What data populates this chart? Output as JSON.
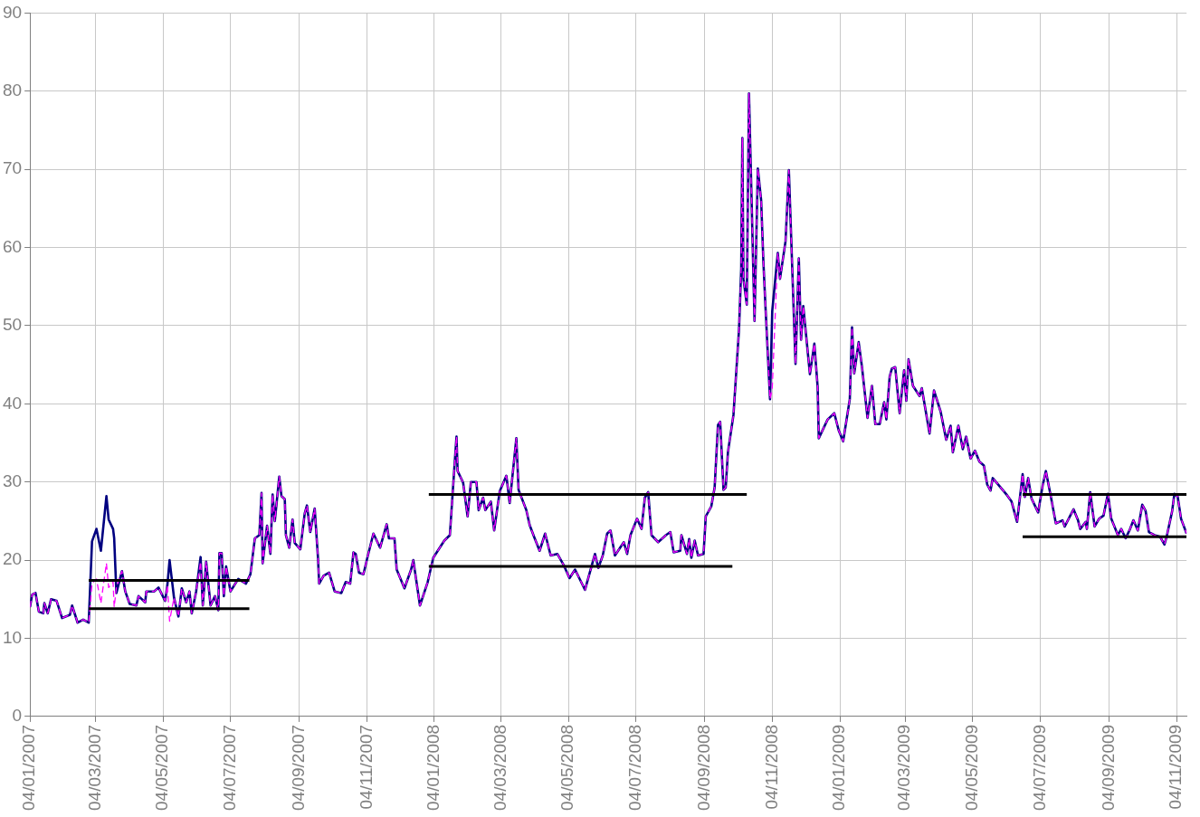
{
  "chart_data": {
    "type": "line",
    "x": [
      "2007-01-04",
      "2007-01-06",
      "2007-01-09",
      "2007-01-12",
      "2007-01-16",
      "2007-01-17",
      "2007-01-20",
      "2007-01-23",
      "2007-01-28",
      "2007-02-02",
      "2007-02-09",
      "2007-02-11",
      "2007-02-16",
      "2007-02-21",
      "2007-02-26",
      "2007-03-01",
      "2007-03-05",
      "2007-03-09",
      "2007-03-14",
      "2007-03-16",
      "2007-03-20",
      "2007-03-21",
      "2007-03-23",
      "2007-03-28",
      "2007-03-31",
      "2007-04-04",
      "2007-04-10",
      "2007-04-12",
      "2007-04-18",
      "2007-04-19",
      "2007-04-26",
      "2007-04-30",
      "2007-05-06",
      "2007-05-08",
      "2007-05-10",
      "2007-05-14",
      "2007-05-18",
      "2007-05-21",
      "2007-05-25",
      "2007-05-28",
      "2007-05-30",
      "2007-06-03",
      "2007-06-07",
      "2007-06-09",
      "2007-06-12",
      "2007-06-16",
      "2007-06-20",
      "2007-06-23",
      "2007-06-24",
      "2007-06-26",
      "2007-06-28",
      "2007-06-30",
      "2007-07-04",
      "2007-07-11",
      "2007-07-18",
      "2007-07-22",
      "2007-07-26",
      "2007-07-30",
      "2007-08-01",
      "2007-08-02",
      "2007-08-06",
      "2007-08-09",
      "2007-08-11",
      "2007-08-13",
      "2007-08-17",
      "2007-08-19",
      "2007-08-22",
      "2007-08-23",
      "2007-08-26",
      "2007-08-29",
      "2007-08-31",
      "2007-09-05",
      "2007-09-09",
      "2007-09-11",
      "2007-09-14",
      "2007-09-18",
      "2007-09-21",
      "2007-09-22",
      "2007-09-26",
      "2007-10-01",
      "2007-10-06",
      "2007-10-12",
      "2007-10-16",
      "2007-10-20",
      "2007-10-23",
      "2007-10-25",
      "2007-10-28",
      "2007-11-01",
      "2007-11-05",
      "2007-11-10",
      "2007-11-16",
      "2007-11-22",
      "2007-11-24",
      "2007-11-29",
      "2007-12-01",
      "2007-12-08",
      "2007-12-14",
      "2007-12-16",
      "2007-12-22",
      "2007-12-29",
      "2008-01-03",
      "2008-01-13",
      "2008-01-18",
      "2008-01-22",
      "2008-01-24",
      "2008-01-25",
      "2008-01-30",
      "2008-02-03",
      "2008-02-06",
      "2008-02-11",
      "2008-02-13",
      "2008-02-17",
      "2008-02-19",
      "2008-02-24",
      "2008-02-27",
      "2008-03-03",
      "2008-03-09",
      "2008-03-12",
      "2008-03-18",
      "2008-03-20",
      "2008-03-27",
      "2008-03-30",
      "2008-04-03",
      "2008-04-08",
      "2008-04-13",
      "2008-04-18",
      "2008-04-24",
      "2008-04-30",
      "2008-05-05",
      "2008-05-10",
      "2008-05-19",
      "2008-05-28",
      "2008-05-31",
      "2008-06-04",
      "2008-06-08",
      "2008-06-11",
      "2008-06-15",
      "2008-06-23",
      "2008-06-26",
      "2008-06-29",
      "2008-07-05",
      "2008-07-09",
      "2008-07-12",
      "2008-07-15",
      "2008-07-18",
      "2008-07-24",
      "2008-07-31",
      "2008-08-04",
      "2008-08-07",
      "2008-08-13",
      "2008-08-14",
      "2008-08-19",
      "2008-08-21",
      "2008-08-23",
      "2008-08-26",
      "2008-08-29",
      "2008-09-03",
      "2008-09-05",
      "2008-09-10",
      "2008-09-13",
      "2008-09-16",
      "2008-09-18",
      "2008-09-21",
      "2008-09-23",
      "2008-09-25",
      "2008-09-30",
      "2008-10-05",
      "2008-10-07",
      "2008-10-08",
      "2008-10-09",
      "2008-10-12",
      "2008-10-14",
      "2008-10-19",
      "2008-10-22",
      "2008-10-25",
      "2008-10-27",
      "2008-10-29",
      "2008-11-02",
      "2008-11-04",
      "2008-11-09",
      "2008-11-11",
      "2008-11-16",
      "2008-11-19",
      "2008-11-25",
      "2008-11-28",
      "2008-11-30",
      "2008-12-02",
      "2008-12-08",
      "2008-12-12",
      "2008-12-15",
      "2008-12-16",
      "2008-12-24",
      "2008-12-30",
      "2009-01-03",
      "2009-01-07",
      "2009-01-13",
      "2009-01-15",
      "2009-01-17",
      "2009-01-21",
      "2009-01-24",
      "2009-01-29",
      "2009-02-02",
      "2009-02-05",
      "2009-02-09",
      "2009-02-13",
      "2009-02-15",
      "2009-02-18",
      "2009-02-20",
      "2009-02-23",
      "2009-02-27",
      "2009-03-03",
      "2009-03-05",
      "2009-03-07",
      "2009-03-11",
      "2009-03-17",
      "2009-03-19",
      "2009-03-26",
      "2009-03-30",
      "2009-04-05",
      "2009-04-10",
      "2009-04-14",
      "2009-04-16",
      "2009-04-21",
      "2009-04-25",
      "2009-04-28",
      "2009-05-02",
      "2009-05-06",
      "2009-05-10",
      "2009-05-14",
      "2009-05-17",
      "2009-05-20",
      "2009-05-22",
      "2009-05-28",
      "2009-06-04",
      "2009-06-08",
      "2009-06-13",
      "2009-06-18",
      "2009-06-20",
      "2009-06-23",
      "2009-06-26",
      "2009-07-02",
      "2009-07-06",
      "2009-07-09",
      "2009-07-13",
      "2009-07-18",
      "2009-07-24",
      "2009-07-26",
      "2009-07-31",
      "2009-08-03",
      "2009-08-07",
      "2009-08-09",
      "2009-08-14",
      "2009-08-15",
      "2009-08-18",
      "2009-08-22",
      "2009-08-26",
      "2009-08-30",
      "2009-09-03",
      "2009-09-06",
      "2009-09-12",
      "2009-09-15",
      "2009-09-19",
      "2009-09-23",
      "2009-09-26",
      "2009-09-30",
      "2009-10-04",
      "2009-10-07",
      "2009-10-10",
      "2009-10-15",
      "2009-10-20",
      "2009-10-24",
      "2009-10-26",
      "2009-10-31",
      "2009-11-02",
      "2009-11-05",
      "2009-11-08",
      "2009-11-13"
    ],
    "series": [
      {
        "color": "#000080",
        "values": [
          14,
          15.6,
          15.8,
          13.4,
          13.2,
          14.5,
          13.2,
          15,
          14.8,
          12.6,
          13,
          14.2,
          12,
          12.4,
          12,
          22.4,
          24,
          21.2,
          28.2,
          25.2,
          24,
          22.8,
          15.8,
          18.6,
          16,
          14.4,
          14.2,
          15.4,
          14.6,
          16,
          16,
          16.5,
          14.8,
          16.8,
          20,
          15.2,
          12.8,
          16.4,
          14.6,
          16,
          13.2,
          16,
          20.4,
          14.2,
          19.8,
          14.2,
          15.4,
          13.6,
          20.9,
          20.9,
          15.4,
          19.2,
          16,
          17.6,
          17,
          18.2,
          22.8,
          23.2,
          28.6,
          19.6,
          24.4,
          20.8,
          28.4,
          25,
          30.7,
          28.2,
          27.8,
          23.2,
          21.6,
          25.2,
          22.2,
          21.4,
          26,
          27,
          23.6,
          26.6,
          20.2,
          17,
          18,
          18.4,
          16,
          15.8,
          17.2,
          17,
          21,
          20.8,
          18.4,
          18.2,
          20.6,
          23.4,
          21.6,
          24.6,
          22.8,
          22.8,
          18.8,
          16.4,
          18.8,
          20,
          14.2,
          17.2,
          20.3,
          22.5,
          23.2,
          31.7,
          35.8,
          31.4,
          29.9,
          25.6,
          30,
          30,
          26.4,
          28,
          26.4,
          27.5,
          23.8,
          28.8,
          30.8,
          27.3,
          35.6,
          29,
          26.4,
          24.5,
          23,
          21.2,
          23.4,
          20.6,
          20.8,
          19.3,
          17.7,
          18.8,
          16.2,
          20.8,
          19,
          20.6,
          23.4,
          23.8,
          20.6,
          22.3,
          20.8,
          23.2,
          25.3,
          24,
          28,
          28.7,
          23.2,
          22.3,
          23.2,
          23.6,
          21,
          21.2,
          23.2,
          20.8,
          22.7,
          20.3,
          22.5,
          20.6,
          20.8,
          25.6,
          26.9,
          29.3,
          37.3,
          37.7,
          29,
          29.3,
          33.8,
          38.6,
          49.5,
          57.3,
          74,
          56,
          52.7,
          79.7,
          50.6,
          70.1,
          66,
          58.2,
          52.1,
          40.6,
          51.9,
          59.3,
          56,
          60.8,
          69.9,
          45.1,
          58.6,
          48.2,
          52.5,
          43.8,
          47.7,
          42.1,
          35.6,
          38,
          38.8,
          36.6,
          35.2,
          40.6,
          49.8,
          43.9,
          47.9,
          44.7,
          38.2,
          42.3,
          37.4,
          37.4,
          40.2,
          38,
          43.5,
          44.5,
          44.7,
          38.8,
          44.3,
          40.4,
          45.7,
          42.3,
          41,
          42,
          36.2,
          41.7,
          39,
          35.4,
          37.2,
          33.8,
          37.2,
          34.2,
          35.8,
          33,
          34,
          32.6,
          32.1,
          29.7,
          28.9,
          30.5,
          29.5,
          28.3,
          27.5,
          24.9,
          31,
          28.1,
          30.5,
          27.9,
          26.1,
          29.5,
          31.4,
          28.5,
          24.7,
          25.1,
          24.3,
          25.7,
          26.5,
          25.1,
          24,
          24.9,
          24,
          28.7,
          24.3,
          25.3,
          25.7,
          28.5,
          25.3,
          23.2,
          24,
          22.8,
          24,
          25.1,
          23.8,
          27.1,
          26.3,
          23.6,
          23.2,
          23,
          22,
          23,
          26.3,
          28.5,
          28.1,
          25.3,
          23.4
        ]
      },
      {
        "color": "#ff00ff",
        "line_style": "dashed",
        "values": [
          14,
          15.6,
          15.8,
          13.4,
          13.2,
          14.5,
          13.2,
          15,
          14.8,
          12.6,
          13,
          14.2,
          12,
          12.4,
          12,
          17,
          17.6,
          14.5,
          19.6,
          16.5,
          17.2,
          14,
          16.5,
          18.6,
          16,
          14.4,
          14.2,
          15.4,
          14.6,
          16,
          16,
          16.5,
          14.8,
          16.8,
          12.2,
          15.2,
          12.8,
          16.4,
          14.6,
          16,
          13.2,
          16,
          19.8,
          14.2,
          19.8,
          14.2,
          15.4,
          13.6,
          20.9,
          20.9,
          15.4,
          19.2,
          16,
          17.6,
          17,
          18.2,
          22.8,
          23.2,
          28.6,
          19.6,
          24.4,
          20.8,
          28.4,
          25,
          30.7,
          28.2,
          27.8,
          23.2,
          21.6,
          25.2,
          22.2,
          21.4,
          26,
          27,
          23.6,
          26.6,
          20.2,
          17,
          18,
          18.4,
          16,
          15.8,
          17.2,
          17,
          21,
          20.8,
          18.4,
          18.2,
          20.6,
          23.4,
          21.6,
          24.6,
          22.8,
          22.8,
          18.8,
          16.4,
          18.8,
          20,
          14.2,
          17.2,
          20.3,
          22.5,
          23.2,
          31.7,
          35.8,
          31.4,
          29.9,
          25.6,
          30,
          30,
          26.4,
          28,
          26.4,
          27.5,
          23.8,
          28.8,
          30.8,
          27.3,
          35.6,
          29,
          26.4,
          24.5,
          23,
          21.2,
          23.4,
          20.6,
          20.8,
          19.3,
          17.7,
          18.8,
          16.2,
          20.8,
          19,
          20.6,
          23.4,
          23.8,
          20.6,
          22.3,
          20.8,
          23.2,
          25.3,
          24,
          28,
          28.7,
          23.2,
          22.3,
          23.2,
          23.6,
          21,
          21.2,
          23.2,
          20.8,
          22.7,
          20.3,
          22.5,
          20.6,
          20.8,
          25.6,
          26.9,
          29.3,
          37.3,
          37.7,
          29,
          29.3,
          33.8,
          38.6,
          49.5,
          57.3,
          74,
          56,
          52.7,
          79.7,
          50.6,
          70.1,
          66,
          58.2,
          52.1,
          40.6,
          42,
          59.3,
          56,
          60.8,
          69.9,
          45.1,
          58.6,
          48.2,
          52.5,
          43.8,
          47.7,
          42.1,
          35.6,
          38,
          38.8,
          36.6,
          35.2,
          40.6,
          49.8,
          43.9,
          47.9,
          44.7,
          38.2,
          42.3,
          37.4,
          37.4,
          40.2,
          38,
          43.5,
          44.5,
          44.7,
          38.8,
          44.3,
          40.4,
          45.7,
          42.3,
          41,
          42,
          36.2,
          41.7,
          39,
          35.4,
          37.2,
          33.8,
          37.2,
          34.2,
          35.8,
          33,
          34,
          32.6,
          32.1,
          29.7,
          28.9,
          30.5,
          29.5,
          28.3,
          27.5,
          24.9,
          31,
          28.1,
          30.5,
          27.9,
          26.1,
          29.5,
          31.4,
          28.5,
          24.7,
          25.1,
          24.3,
          25.7,
          26.5,
          25.1,
          24,
          24.9,
          24,
          28.7,
          24.3,
          25.3,
          25.7,
          28.5,
          25.3,
          23.2,
          24,
          22.8,
          24,
          25.1,
          23.8,
          27.1,
          26.3,
          23.6,
          23.2,
          23,
          22,
          23,
          26.3,
          28.5,
          28.1,
          25.3,
          23.4
        ]
      },
      {
        "color": "#000000",
        "x": [
          "2007-02-26",
          "2007-07-21"
        ],
        "values": [
          17.4,
          17.4
        ]
      },
      {
        "color": "#000000",
        "x": [
          "2007-02-26",
          "2007-07-21"
        ],
        "values": [
          13.8,
          13.8
        ]
      },
      {
        "color": "#000000",
        "x": [
          "2007-12-30",
          "2008-10-12"
        ],
        "values": [
          28.4,
          28.4
        ]
      },
      {
        "color": "#000000",
        "x": [
          "2007-12-30",
          "2008-09-29"
        ],
        "values": [
          19.2,
          19.2
        ]
      },
      {
        "color": "#000000",
        "x": [
          "2009-06-18",
          "2009-11-13"
        ],
        "values": [
          28.4,
          28.4
        ]
      },
      {
        "color": "#000000",
        "x": [
          "2009-06-18",
          "2009-11-13"
        ],
        "values": [
          23,
          23
        ]
      }
    ],
    "xlim": [
      "2007-01-04",
      "2009-11-13"
    ],
    "xticks": [
      {
        "value": "2007-01-04",
        "label": "04/01/2007"
      },
      {
        "value": "2007-03-04",
        "label": "04/03/2007"
      },
      {
        "value": "2007-05-04",
        "label": "04/05/2007"
      },
      {
        "value": "2007-07-04",
        "label": "04/07/2007"
      },
      {
        "value": "2007-09-04",
        "label": "04/09/2007"
      },
      {
        "value": "2007-11-04",
        "label": "04/11/2007"
      },
      {
        "value": "2008-01-04",
        "label": "04/01/2008"
      },
      {
        "value": "2008-03-04",
        "label": "04/03/2008"
      },
      {
        "value": "2008-05-04",
        "label": "04/05/2008"
      },
      {
        "value": "2008-07-04",
        "label": "04/07/2008"
      },
      {
        "value": "2008-09-04",
        "label": "04/09/2008"
      },
      {
        "value": "2008-11-04",
        "label": "04/11/2008"
      },
      {
        "value": "2009-01-04",
        "label": "04/01/2009"
      },
      {
        "value": "2009-03-04",
        "label": "04/03/2009"
      },
      {
        "value": "2009-05-04",
        "label": "04/05/2009"
      },
      {
        "value": "2009-07-04",
        "label": "04/07/2009"
      },
      {
        "value": "2009-09-04",
        "label": "04/09/2009"
      },
      {
        "value": "2009-11-04",
        "label": "04/11/2009"
      }
    ],
    "ylim": [
      0,
      90
    ],
    "yticks": [
      0,
      10,
      20,
      30,
      40,
      50,
      60,
      70,
      80,
      90
    ],
    "grid": true,
    "marker": "none",
    "line_style": "solid"
  }
}
